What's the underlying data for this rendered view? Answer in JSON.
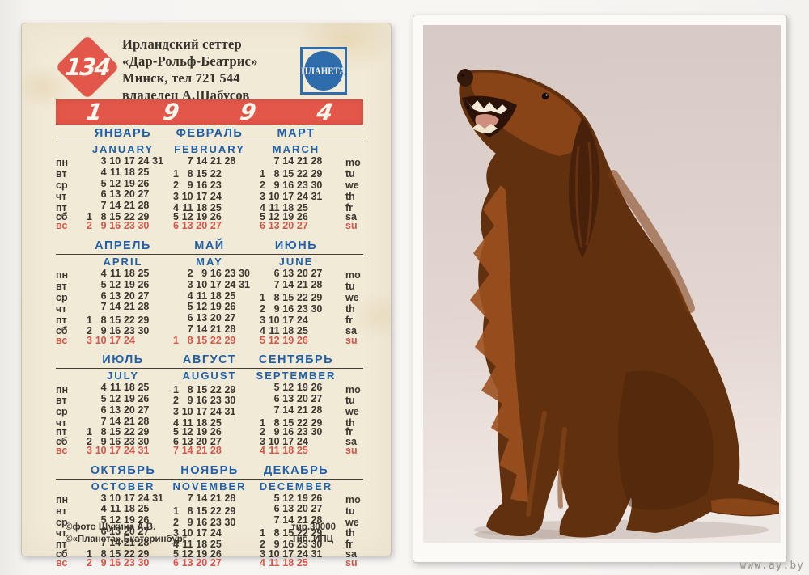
{
  "page": {
    "watermark": "www.ay.by"
  },
  "card": {
    "number": "134",
    "owner_lines": [
      "Ирландский сеттер",
      "«Дар-Рольф-Беатрис»",
      "Минск, тел 721 544",
      "владелец А.Шабусов"
    ],
    "brand": "ПЛАНЕТА",
    "year_digits": [
      "1",
      "9",
      "9",
      "4"
    ],
    "footer_left": [
      "©фото Щукина А.В.",
      "©«Планета»,Екатеринбург"
    ],
    "footer_right": [
      "тир.30000",
      "Тип. ИПЦ"
    ],
    "colors": {
      "red": "#e2574a",
      "blue": "#2160a8",
      "sunday_red": "#d4574b",
      "card_bg": "#f1ead7",
      "ink": "#3c372e"
    }
  },
  "photo": {
    "subject": "Irish setter dog sitting, looking up"
  },
  "calendar": {
    "year": "1994",
    "day_labels_ru": [
      "пн",
      "вт",
      "ср",
      "чт",
      "пт",
      "сб",
      "вс"
    ],
    "day_labels_en": [
      "mo",
      "tu",
      "we",
      "th",
      "fr",
      "sa",
      "su"
    ],
    "quarters": [
      {
        "months": [
          {
            "ru": "ЯНВАРЬ",
            "en": "JANUARY",
            "rows": [
              [
                "",
                3,
                10,
                17,
                24,
                31
              ],
              [
                "",
                4,
                11,
                18,
                25,
                ""
              ],
              [
                "",
                5,
                12,
                19,
                26,
                ""
              ],
              [
                "",
                6,
                13,
                20,
                27,
                ""
              ],
              [
                "",
                7,
                14,
                21,
                28,
                ""
              ],
              [
                1,
                8,
                15,
                22,
                29,
                ""
              ],
              [
                2,
                9,
                16,
                23,
                30,
                ""
              ]
            ]
          },
          {
            "ru": "ФЕВРАЛЬ",
            "en": "FEBRUARY",
            "rows": [
              [
                "",
                7,
                14,
                21,
                28,
                ""
              ],
              [
                1,
                8,
                15,
                22,
                "",
                ""
              ],
              [
                2,
                9,
                16,
                23,
                "",
                ""
              ],
              [
                3,
                10,
                17,
                24,
                "",
                ""
              ],
              [
                4,
                11,
                18,
                25,
                "",
                ""
              ],
              [
                5,
                12,
                19,
                26,
                "",
                ""
              ],
              [
                6,
                13,
                20,
                27,
                "",
                ""
              ]
            ]
          },
          {
            "ru": "МАРТ",
            "en": "MARCH",
            "rows": [
              [
                "",
                7,
                14,
                21,
                28,
                ""
              ],
              [
                1,
                8,
                15,
                22,
                29,
                ""
              ],
              [
                2,
                9,
                16,
                23,
                30,
                ""
              ],
              [
                3,
                10,
                17,
                24,
                31,
                ""
              ],
              [
                4,
                11,
                18,
                25,
                "",
                ""
              ],
              [
                5,
                12,
                19,
                26,
                "",
                ""
              ],
              [
                6,
                13,
                20,
                27,
                "",
                ""
              ]
            ]
          }
        ]
      },
      {
        "months": [
          {
            "ru": "АПРЕЛЬ",
            "en": "APRIL",
            "rows": [
              [
                "",
                4,
                11,
                18,
                25,
                ""
              ],
              [
                "",
                5,
                12,
                19,
                26,
                ""
              ],
              [
                "",
                6,
                13,
                20,
                27,
                ""
              ],
              [
                "",
                7,
                14,
                21,
                28,
                ""
              ],
              [
                1,
                8,
                15,
                22,
                29,
                ""
              ],
              [
                2,
                9,
                16,
                23,
                30,
                ""
              ],
              [
                3,
                10,
                17,
                24,
                "",
                ""
              ]
            ]
          },
          {
            "ru": "МАЙ",
            "en": "MAY",
            "rows": [
              [
                "",
                2,
                9,
                16,
                23,
                30
              ],
              [
                "",
                3,
                10,
                17,
                24,
                31
              ],
              [
                "",
                4,
                11,
                18,
                25,
                ""
              ],
              [
                "",
                5,
                12,
                19,
                26,
                ""
              ],
              [
                "",
                6,
                13,
                20,
                27,
                ""
              ],
              [
                "",
                7,
                14,
                21,
                28,
                ""
              ],
              [
                1,
                8,
                15,
                22,
                29,
                ""
              ]
            ]
          },
          {
            "ru": "ИЮНЬ",
            "en": "JUNE",
            "rows": [
              [
                "",
                6,
                13,
                20,
                27,
                ""
              ],
              [
                "",
                7,
                14,
                21,
                28,
                ""
              ],
              [
                1,
                8,
                15,
                22,
                29,
                ""
              ],
              [
                2,
                9,
                16,
                23,
                30,
                ""
              ],
              [
                3,
                10,
                17,
                24,
                "",
                ""
              ],
              [
                4,
                11,
                18,
                25,
                "",
                ""
              ],
              [
                5,
                12,
                19,
                26,
                "",
                ""
              ]
            ]
          }
        ]
      },
      {
        "months": [
          {
            "ru": "ИЮЛЬ",
            "en": "JULY",
            "rows": [
              [
                "",
                4,
                11,
                18,
                25,
                ""
              ],
              [
                "",
                5,
                12,
                19,
                26,
                ""
              ],
              [
                "",
                6,
                13,
                20,
                27,
                ""
              ],
              [
                "",
                7,
                14,
                21,
                28,
                ""
              ],
              [
                1,
                8,
                15,
                22,
                29,
                ""
              ],
              [
                2,
                9,
                16,
                23,
                30,
                ""
              ],
              [
                3,
                10,
                17,
                24,
                31,
                ""
              ]
            ]
          },
          {
            "ru": "АВГУСТ",
            "en": "AUGUST",
            "rows": [
              [
                1,
                8,
                15,
                22,
                29,
                ""
              ],
              [
                2,
                9,
                16,
                23,
                30,
                ""
              ],
              [
                3,
                10,
                17,
                24,
                31,
                ""
              ],
              [
                4,
                11,
                18,
                25,
                "",
                ""
              ],
              [
                5,
                12,
                19,
                26,
                "",
                ""
              ],
              [
                6,
                13,
                20,
                27,
                "",
                ""
              ],
              [
                7,
                14,
                21,
                28,
                "",
                ""
              ]
            ]
          },
          {
            "ru": "СЕНТЯБРЬ",
            "en": "SEPTEMBER",
            "rows": [
              [
                "",
                5,
                12,
                19,
                26,
                ""
              ],
              [
                "",
                6,
                13,
                20,
                27,
                ""
              ],
              [
                "",
                7,
                14,
                21,
                28,
                ""
              ],
              [
                1,
                8,
                15,
                22,
                29,
                ""
              ],
              [
                2,
                9,
                16,
                23,
                30,
                ""
              ],
              [
                3,
                10,
                17,
                24,
                "",
                ""
              ],
              [
                4,
                11,
                18,
                25,
                "",
                ""
              ]
            ]
          }
        ]
      },
      {
        "months": [
          {
            "ru": "ОКТЯБРЬ",
            "en": "OCTOBER",
            "rows": [
              [
                "",
                3,
                10,
                17,
                24,
                31
              ],
              [
                "",
                4,
                11,
                18,
                25,
                ""
              ],
              [
                "",
                5,
                12,
                19,
                26,
                ""
              ],
              [
                "",
                6,
                13,
                20,
                27,
                ""
              ],
              [
                "",
                7,
                14,
                21,
                28,
                ""
              ],
              [
                1,
                8,
                15,
                22,
                29,
                ""
              ],
              [
                2,
                9,
                16,
                23,
                30,
                ""
              ]
            ]
          },
          {
            "ru": "НОЯБРЬ",
            "en": "NOVEMBER",
            "rows": [
              [
                "",
                7,
                14,
                21,
                28,
                ""
              ],
              [
                1,
                8,
                15,
                22,
                29,
                ""
              ],
              [
                2,
                9,
                16,
                23,
                30,
                ""
              ],
              [
                3,
                10,
                17,
                24,
                "",
                ""
              ],
              [
                4,
                11,
                18,
                25,
                "",
                ""
              ],
              [
                5,
                12,
                19,
                26,
                "",
                ""
              ],
              [
                6,
                13,
                20,
                27,
                "",
                ""
              ]
            ]
          },
          {
            "ru": "ДЕКАБРЬ",
            "en": "DECEMBER",
            "rows": [
              [
                "",
                5,
                12,
                19,
                26,
                ""
              ],
              [
                "",
                6,
                13,
                20,
                27,
                ""
              ],
              [
                "",
                7,
                14,
                21,
                28,
                ""
              ],
              [
                1,
                8,
                15,
                22,
                29,
                ""
              ],
              [
                2,
                9,
                16,
                23,
                30,
                ""
              ],
              [
                3,
                10,
                17,
                24,
                31,
                ""
              ],
              [
                4,
                11,
                18,
                25,
                "",
                ""
              ]
            ]
          }
        ]
      }
    ]
  }
}
